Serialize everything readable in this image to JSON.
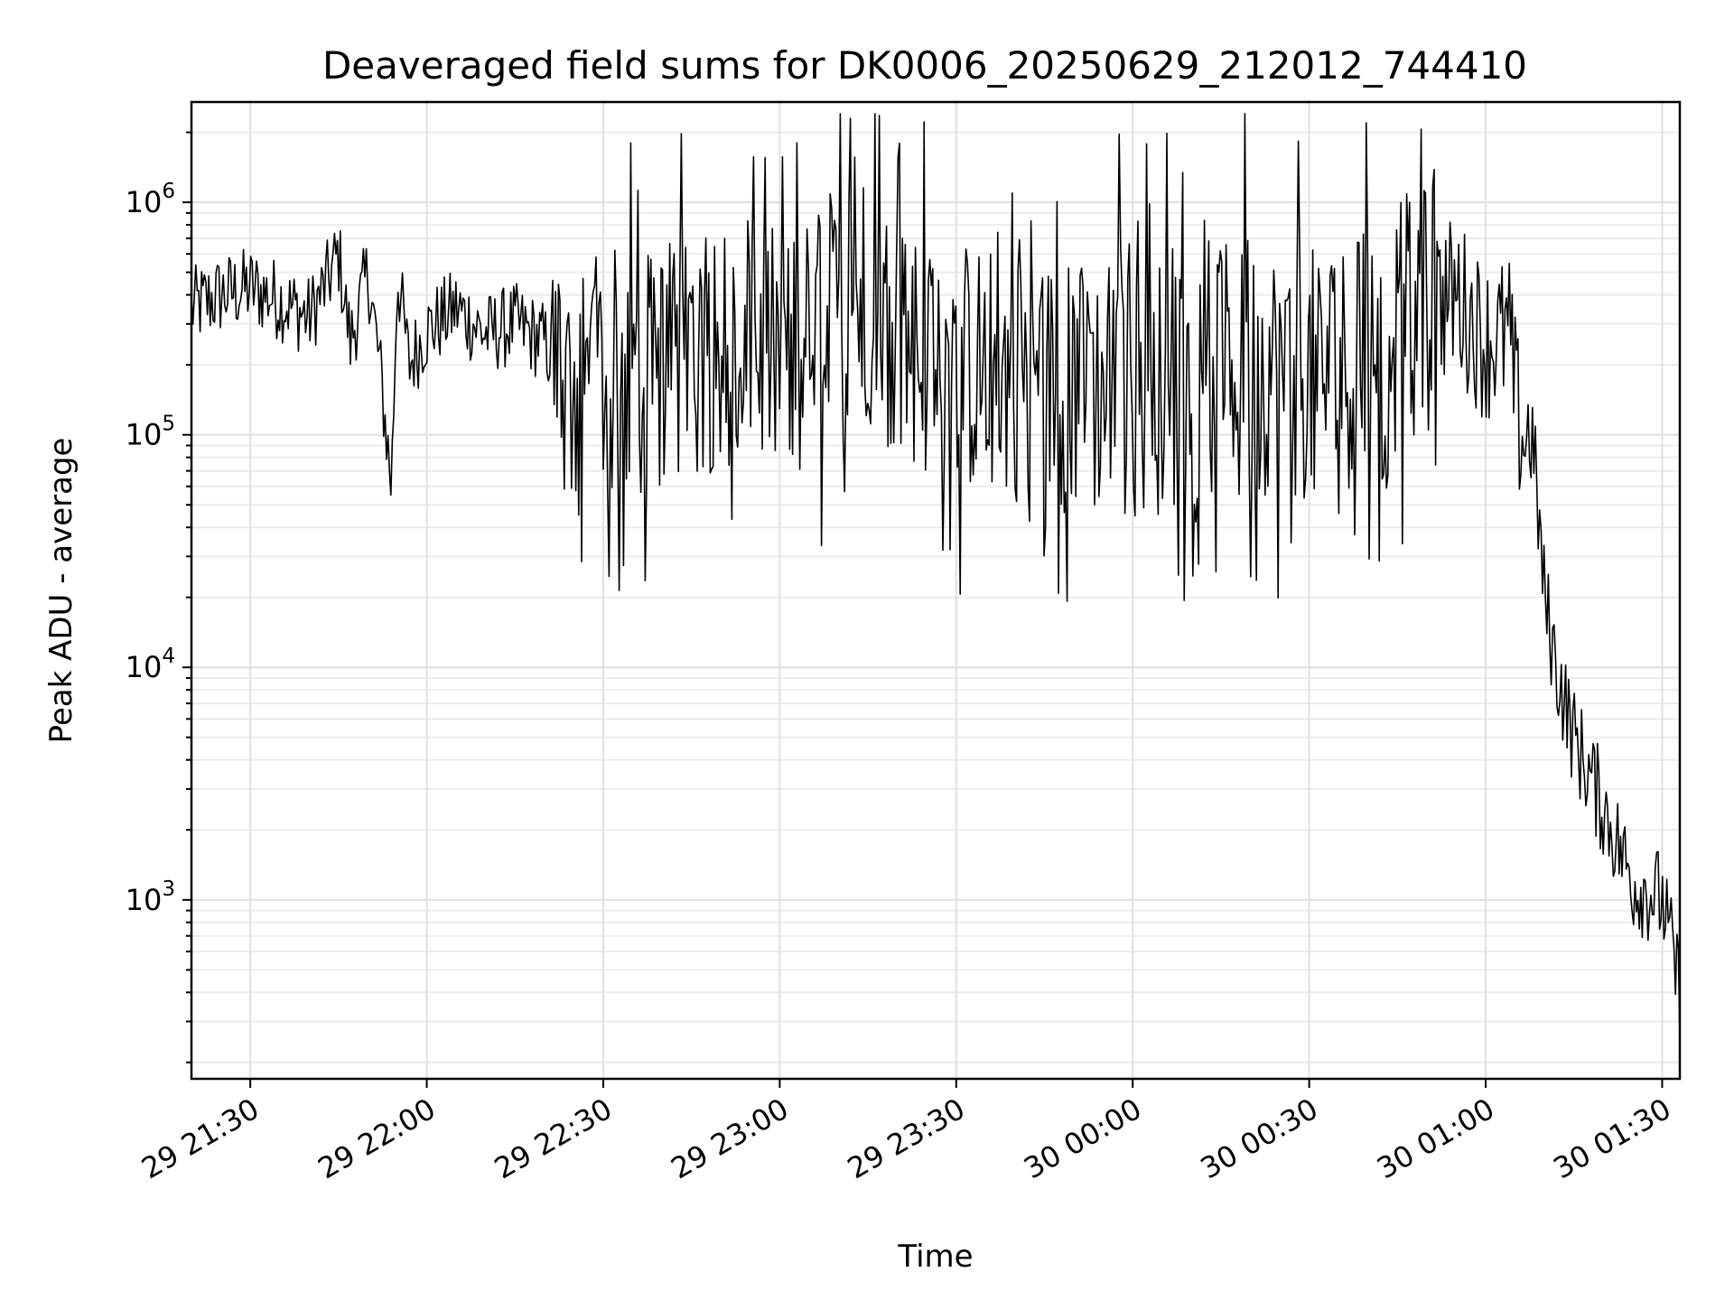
{
  "chart_data": {
    "type": "line",
    "title": "Deaveraged field sums for DK0006_20250629_212012_744410",
    "xlabel": "Time",
    "ylabel": "Peak ADU - average",
    "yscale": "log",
    "ylim": [
      170,
      2700000
    ],
    "xlim": [
      "2025-06-29 21:20",
      "2025-06-30 01:33"
    ],
    "grid": true,
    "line_color": "#000000",
    "x_ticks": [
      {
        "t": "2025-06-29 21:30",
        "label": "29 21:30"
      },
      {
        "t": "2025-06-29 22:00",
        "label": "29 22:00"
      },
      {
        "t": "2025-06-29 22:30",
        "label": "29 22:30"
      },
      {
        "t": "2025-06-29 23:00",
        "label": "29 23:00"
      },
      {
        "t": "2025-06-29 23:30",
        "label": "29 23:30"
      },
      {
        "t": "2025-06-30 00:00",
        "label": "30 00:00"
      },
      {
        "t": "2025-06-30 00:30",
        "label": "30 00:30"
      },
      {
        "t": "2025-06-30 01:00",
        "label": "30 01:00"
      },
      {
        "t": "2025-06-30 01:30",
        "label": "30 01:30"
      }
    ],
    "y_ticks": [
      {
        "value": 1000,
        "base": "10",
        "exp": "3"
      },
      {
        "value": 10000,
        "base": "10",
        "exp": "4"
      },
      {
        "value": 100000,
        "base": "10",
        "exp": "5"
      },
      {
        "value": 1000000,
        "base": "10",
        "exp": "6"
      }
    ],
    "series": [
      {
        "x": [
          "2025-06-29 21:20",
          "2025-06-29 21:25",
          "2025-06-29 21:30",
          "2025-06-29 21:35",
          "2025-06-29 21:40",
          "2025-06-29 21:43",
          "2025-06-29 21:45",
          "2025-06-29 21:47",
          "2025-06-29 21:50",
          "2025-06-29 21:52",
          "2025-06-29 21:54",
          "2025-06-29 21:55",
          "2025-06-29 21:57",
          "2025-06-29 22:00",
          "2025-06-29 22:05",
          "2025-06-29 22:10",
          "2025-06-29 22:15",
          "2025-06-29 22:20",
          "2025-06-29 22:25",
          "2025-06-29 22:30",
          "2025-06-29 22:40",
          "2025-06-29 22:50",
          "2025-06-29 23:00",
          "2025-06-29 23:10",
          "2025-06-29 23:15",
          "2025-06-29 23:20",
          "2025-06-29 23:30",
          "2025-06-29 23:40",
          "2025-06-29 23:50",
          "2025-06-30 00:00",
          "2025-06-30 00:10",
          "2025-06-30 00:20",
          "2025-06-30 00:30",
          "2025-06-30 00:40",
          "2025-06-30 00:45",
          "2025-06-30 00:50",
          "2025-06-30 00:55",
          "2025-06-30 01:00",
          "2025-06-30 01:04",
          "2025-06-30 01:05",
          "2025-06-30 01:06",
          "2025-06-30 01:08",
          "2025-06-30 01:10",
          "2025-06-30 01:12",
          "2025-06-30 01:15",
          "2025-06-30 01:20",
          "2025-06-30 01:25",
          "2025-06-30 01:30",
          "2025-06-30 01:33"
        ],
        "values": [
          350000,
          400000,
          430000,
          380000,
          320000,
          450000,
          600000,
          250000,
          500000,
          200000,
          60000,
          500000,
          200000,
          280000,
          350000,
          270000,
          300000,
          250000,
          150000,
          180000,
          200000,
          250000,
          220000,
          300000,
          400000,
          250000,
          200000,
          180000,
          160000,
          150000,
          170000,
          200000,
          180000,
          220000,
          300000,
          350000,
          400000,
          250000,
          270000,
          150000,
          100000,
          95000,
          20000,
          10000,
          5000,
          2500,
          1200,
          1000,
          400
        ]
      }
    ]
  }
}
